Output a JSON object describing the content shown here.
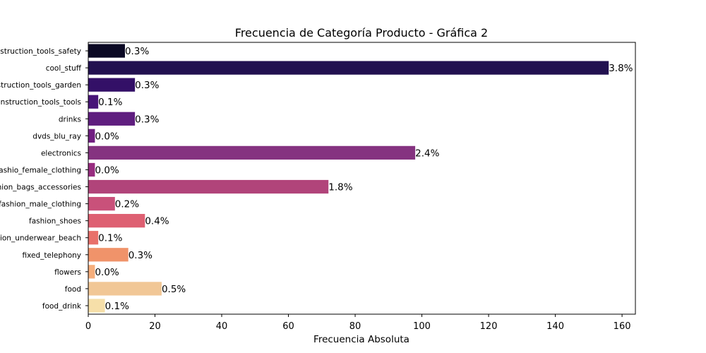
{
  "chart_data": {
    "type": "bar",
    "orientation": "horizontal",
    "title": "Frecuencia de Categoría Producto - Gráfica 2",
    "xlabel": "Frecuencia Absoluta",
    "ylabel": "",
    "xlim": [
      0,
      164
    ],
    "xticks": [
      "0",
      "20",
      "40",
      "60",
      "80",
      "100",
      "120",
      "140",
      "160"
    ],
    "grid": false,
    "legend": "none",
    "categories": [
      "construction_tools_safety",
      "cool_stuff",
      "construction_tools_garden",
      "construction_tools_tools",
      "drinks",
      "dvds_blu_ray",
      "electronics",
      "fashio_female_clothing",
      "fashion_bags_accessories",
      "fashion_male_clothing",
      "fashion_shoes",
      "fashion_underwear_beach",
      "fixed_telephony",
      "flowers",
      "food",
      "food_drink"
    ],
    "values": [
      11,
      156,
      14,
      3,
      14,
      2,
      98,
      2,
      72,
      8,
      17,
      3,
      12,
      2,
      22,
      5
    ],
    "labels": [
      "0.3%",
      "3.8%",
      "0.3%",
      "0.1%",
      "0.3%",
      "0.0%",
      "2.4%",
      "0.0%",
      "1.8%",
      "0.2%",
      "0.4%",
      "0.1%",
      "0.3%",
      "0.0%",
      "0.5%",
      "0.1%"
    ],
    "colors": [
      "#0b0924",
      "#221150",
      "#331067",
      "#481578",
      "#5f1e7f",
      "#711f81",
      "#853380",
      "#982d80",
      "#b1447a",
      "#c9517a",
      "#de6072",
      "#e8706a",
      "#f0936a",
      "#f6ae7c",
      "#f1c796",
      "#f6dfa9"
    ]
  }
}
